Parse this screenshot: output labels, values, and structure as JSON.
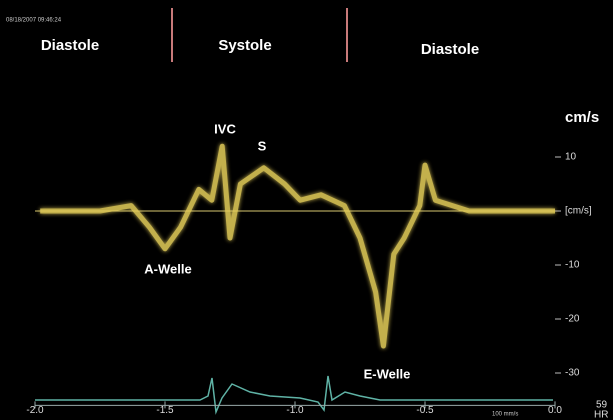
{
  "chart_data": {
    "type": "line",
    "timestamp": "08/18/2007 09:46:24",
    "phases": [
      "Diastole",
      "Systole",
      "Diastole"
    ],
    "y_label": "cm/s",
    "annotations": [
      "IVC",
      "S",
      "A-Welle",
      "E-Welle"
    ],
    "sweep_label": "100 mm/s",
    "heart_rate": "59",
    "heart_rate_unit": "HR",
    "x": [
      -1.98,
      -1.75,
      -1.63,
      -1.56,
      -1.5,
      -1.44,
      -1.37,
      -1.32,
      -1.28,
      -1.25,
      -1.21,
      -1.12,
      -1.04,
      -0.98,
      -0.9,
      -0.81,
      -0.75,
      -0.69,
      -0.66,
      -0.62,
      -0.58,
      -0.52,
      -0.5,
      -0.46,
      -0.33,
      -0.13,
      0
    ],
    "series": [
      {
        "color": "#e6cf5a",
        "values": [
          0,
          0,
          1,
          -3,
          -7,
          -3,
          4,
          2,
          12,
          -5,
          5,
          8,
          5,
          2,
          3,
          1,
          -5,
          -15,
          -25,
          -8,
          -5,
          1,
          8.5,
          2,
          0,
          0,
          0
        ]
      }
    ],
    "xlim": [
      -2.0,
      0.0
    ],
    "xticks": [
      {
        "value": -2,
        "label": "-2.0"
      },
      {
        "value": -1.5,
        "label": "-1.5"
      },
      {
        "value": -1,
        "label": "-1.0"
      },
      {
        "value": -0.5,
        "label": "-0.5"
      },
      {
        "value": 0,
        "label": "0.0"
      }
    ],
    "ylim": [
      -36,
      36
    ],
    "yticks": [
      10,
      {
        "value": 0,
        "label": "[cm/s]"
      },
      -10,
      -20,
      -30
    ]
  }
}
